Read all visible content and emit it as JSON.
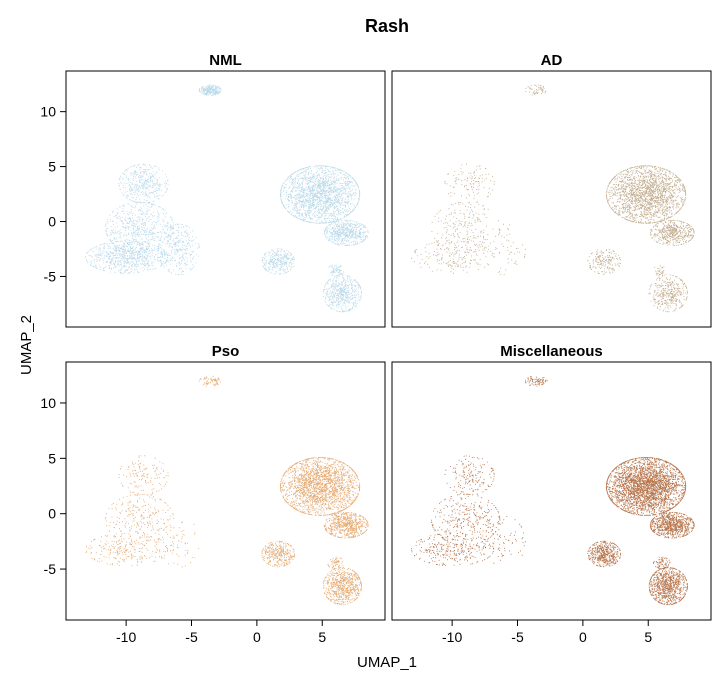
{
  "chart_data": {
    "type": "scatter",
    "title": "Rash",
    "xlabel": "UMAP_1",
    "ylabel": "UMAP_2",
    "xlim": [
      -14.6,
      9.8
    ],
    "ylim": [
      -9.6,
      13.7
    ],
    "xticks": [
      -10,
      -5,
      0,
      5
    ],
    "yticks": [
      10,
      5,
      0,
      -5
    ],
    "panels": [
      {
        "name": "NML",
        "color": "#a9d0e4",
        "density": 0.9,
        "clusterWeights": [
          1.0,
          1.0,
          1.0,
          1.0,
          1.0,
          1.0,
          1.0,
          1.0,
          1.0,
          1.0
        ]
      },
      {
        "name": "AD",
        "color": "#b49a74",
        "density": 0.75,
        "clusterWeights": [
          0.25,
          0.35,
          0.45,
          0.3,
          0.2,
          1.2,
          1.0,
          0.7,
          0.8,
          0.6
        ]
      },
      {
        "name": "Pso",
        "color": "#e09650",
        "density": 0.75,
        "clusterWeights": [
          0.3,
          0.4,
          0.5,
          0.4,
          0.25,
          1.3,
          1.3,
          1.3,
          1.5,
          0.9
        ]
      },
      {
        "name": "Miscellaneous",
        "color": "#a5531f",
        "density": 0.9,
        "clusterWeights": [
          0.3,
          0.4,
          0.5,
          0.4,
          0.25,
          1.6,
          1.4,
          1.5,
          1.6,
          1.0
        ]
      }
    ],
    "clusters": [
      {
        "name": "top-island",
        "cx": -3.6,
        "cy": 12.0,
        "rx": 0.8,
        "ry": 0.45,
        "n": 300
      },
      {
        "name": "left-upper",
        "cx": -8.7,
        "cy": 3.5,
        "rx": 1.8,
        "ry": 1.7,
        "n": 450
      },
      {
        "name": "left-mid",
        "cx": -9.0,
        "cy": -0.5,
        "rx": 2.5,
        "ry": 2.2,
        "n": 650
      },
      {
        "name": "left-lower",
        "cx": -10.0,
        "cy": -3.2,
        "rx": 3.0,
        "ry": 1.4,
        "n": 800
      },
      {
        "name": "left-tail",
        "cx": -6.0,
        "cy": -2.5,
        "rx": 1.5,
        "ry": 2.2,
        "n": 350
      },
      {
        "name": "right-main",
        "cx": 4.8,
        "cy": 2.5,
        "rx": 2.9,
        "ry": 2.5,
        "n": 2200
      },
      {
        "name": "right-lower-arm",
        "cx": 6.8,
        "cy": -1.0,
        "rx": 1.6,
        "ry": 1.1,
        "n": 650
      },
      {
        "name": "mid-small",
        "cx": 1.6,
        "cy": -3.6,
        "rx": 1.2,
        "ry": 1.1,
        "n": 350
      },
      {
        "name": "bottom-right",
        "cx": 6.5,
        "cy": -6.5,
        "rx": 1.4,
        "ry": 1.6,
        "n": 600
      },
      {
        "name": "bottom-right-tail",
        "cx": 6.0,
        "cy": -4.4,
        "rx": 0.6,
        "ry": 0.5,
        "n": 80
      }
    ]
  }
}
